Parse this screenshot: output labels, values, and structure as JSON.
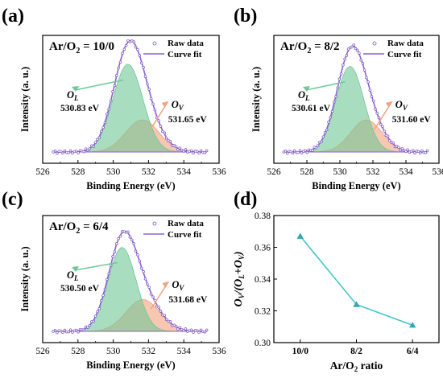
{
  "figure": {
    "panels": [
      {
        "label": "(a)",
        "condition": {
          "prefix": "Ar/O",
          "sub": "2",
          "suffix": " = 10/0"
        },
        "legend": {
          "raw": "Raw data",
          "fit": "Curve fit"
        },
        "ylabel": "Intensity (a. u.)",
        "xlabel": "Binding Energy (eV)",
        "xticks": [
          "526",
          "528",
          "530",
          "532",
          "534",
          "536"
        ],
        "ol": {
          "sym": "O",
          "sub": "L",
          "value": "530.83 eV"
        },
        "ov": {
          "sym": "O",
          "sub": "V",
          "value": "531.65 eV"
        }
      },
      {
        "label": "(b)",
        "condition": {
          "prefix": "Ar/O",
          "sub": "2",
          "suffix": " = 8/2"
        },
        "legend": {
          "raw": "Raw data",
          "fit": "Curve fit"
        },
        "ylabel": "Intensity (a. u.)",
        "xlabel": "Binding Energy (eV)",
        "xticks": [
          "526",
          "528",
          "530",
          "532",
          "534",
          "536"
        ],
        "ol": {
          "sym": "O",
          "sub": "L",
          "value": "530.61 eV"
        },
        "ov": {
          "sym": "O",
          "sub": "V",
          "value": "531.60 eV"
        }
      },
      {
        "label": "(c)",
        "condition": {
          "prefix": "Ar/O",
          "sub": "2",
          "suffix": " = 6/4"
        },
        "legend": {
          "raw": "Raw data",
          "fit": "Curve fit"
        },
        "ylabel": "Intensity (a. u.)",
        "xlabel": "Binding Energy (eV)",
        "xticks": [
          "526",
          "528",
          "530",
          "532",
          "534",
          "536"
        ],
        "ol": {
          "sym": "O",
          "sub": "L",
          "value": "530.50 eV"
        },
        "ov": {
          "sym": "O",
          "sub": "V",
          "value": "531.68 eV"
        }
      },
      {
        "label": "(d)",
        "xlabel": "Ar/O2 ratio",
        "ylabel": "OV/(OL+OV)"
      }
    ]
  },
  "chart_data": [
    {
      "type": "line",
      "panel": "(a)",
      "title": "Ar/O2 = 10/0",
      "xlabel": "Binding Energy (eV)",
      "ylabel": "Intensity (a. u.)",
      "xlim": [
        526,
        536
      ],
      "series": [
        {
          "name": "Raw data",
          "peaks": [
            {
              "center": 530.83,
              "height": 0.82,
              "sigma": 0.85
            },
            {
              "center": 531.65,
              "height": 0.3,
              "sigma": 0.95
            }
          ]
        },
        {
          "name": "Curve fit"
        }
      ],
      "annotations": [
        "OL 530.83 eV",
        "OV 531.65 eV"
      ],
      "colors": {
        "raw": "#7b55c2",
        "fit": "#8a63d2",
        "ol": "#6fc796",
        "ov": "#f2a27e"
      }
    },
    {
      "type": "line",
      "panel": "(b)",
      "title": "Ar/O2 = 8/2",
      "xlabel": "Binding Energy (eV)",
      "ylabel": "Intensity (a. u.)",
      "xlim": [
        526,
        536
      ],
      "series": [
        {
          "name": "Raw data",
          "peaks": [
            {
              "center": 530.61,
              "height": 0.8,
              "sigma": 0.85
            },
            {
              "center": 531.6,
              "height": 0.3,
              "sigma": 0.95
            }
          ]
        },
        {
          "name": "Curve fit"
        }
      ],
      "annotations": [
        "OL 530.61 eV",
        "OV 531.60 eV"
      ],
      "colors": {
        "raw": "#7b55c2",
        "fit": "#8a63d2",
        "ol": "#6fc796",
        "ov": "#f2a27e"
      }
    },
    {
      "type": "line",
      "panel": "(c)",
      "title": "Ar/O2 = 6/4",
      "xlabel": "Binding Energy (eV)",
      "ylabel": "Intensity (a. u.)",
      "xlim": [
        526,
        536
      ],
      "series": [
        {
          "name": "Raw data",
          "peaks": [
            {
              "center": 530.5,
              "height": 0.79,
              "sigma": 0.8
            },
            {
              "center": 531.68,
              "height": 0.3,
              "sigma": 0.95
            }
          ]
        },
        {
          "name": "Curve fit"
        }
      ],
      "annotations": [
        "OL 530.50 eV",
        "OV 531.68 eV"
      ],
      "colors": {
        "raw": "#7b55c2",
        "fit": "#8a63d2",
        "ol": "#6fc796",
        "ov": "#f2a27e"
      }
    },
    {
      "type": "line",
      "panel": "(d)",
      "xlabel": "Ar/O2 ratio",
      "ylabel": "OV/(OL+OV)",
      "categories": [
        "10/0",
        "8/2",
        "6/4"
      ],
      "values": [
        0.367,
        0.324,
        0.311
      ],
      "ylim": [
        0.3,
        0.38
      ],
      "yticks": [
        0.3,
        0.32,
        0.34,
        0.36,
        0.38
      ],
      "colors": {
        "line": "#43c6cc",
        "marker": "#2fa8b2"
      }
    }
  ]
}
